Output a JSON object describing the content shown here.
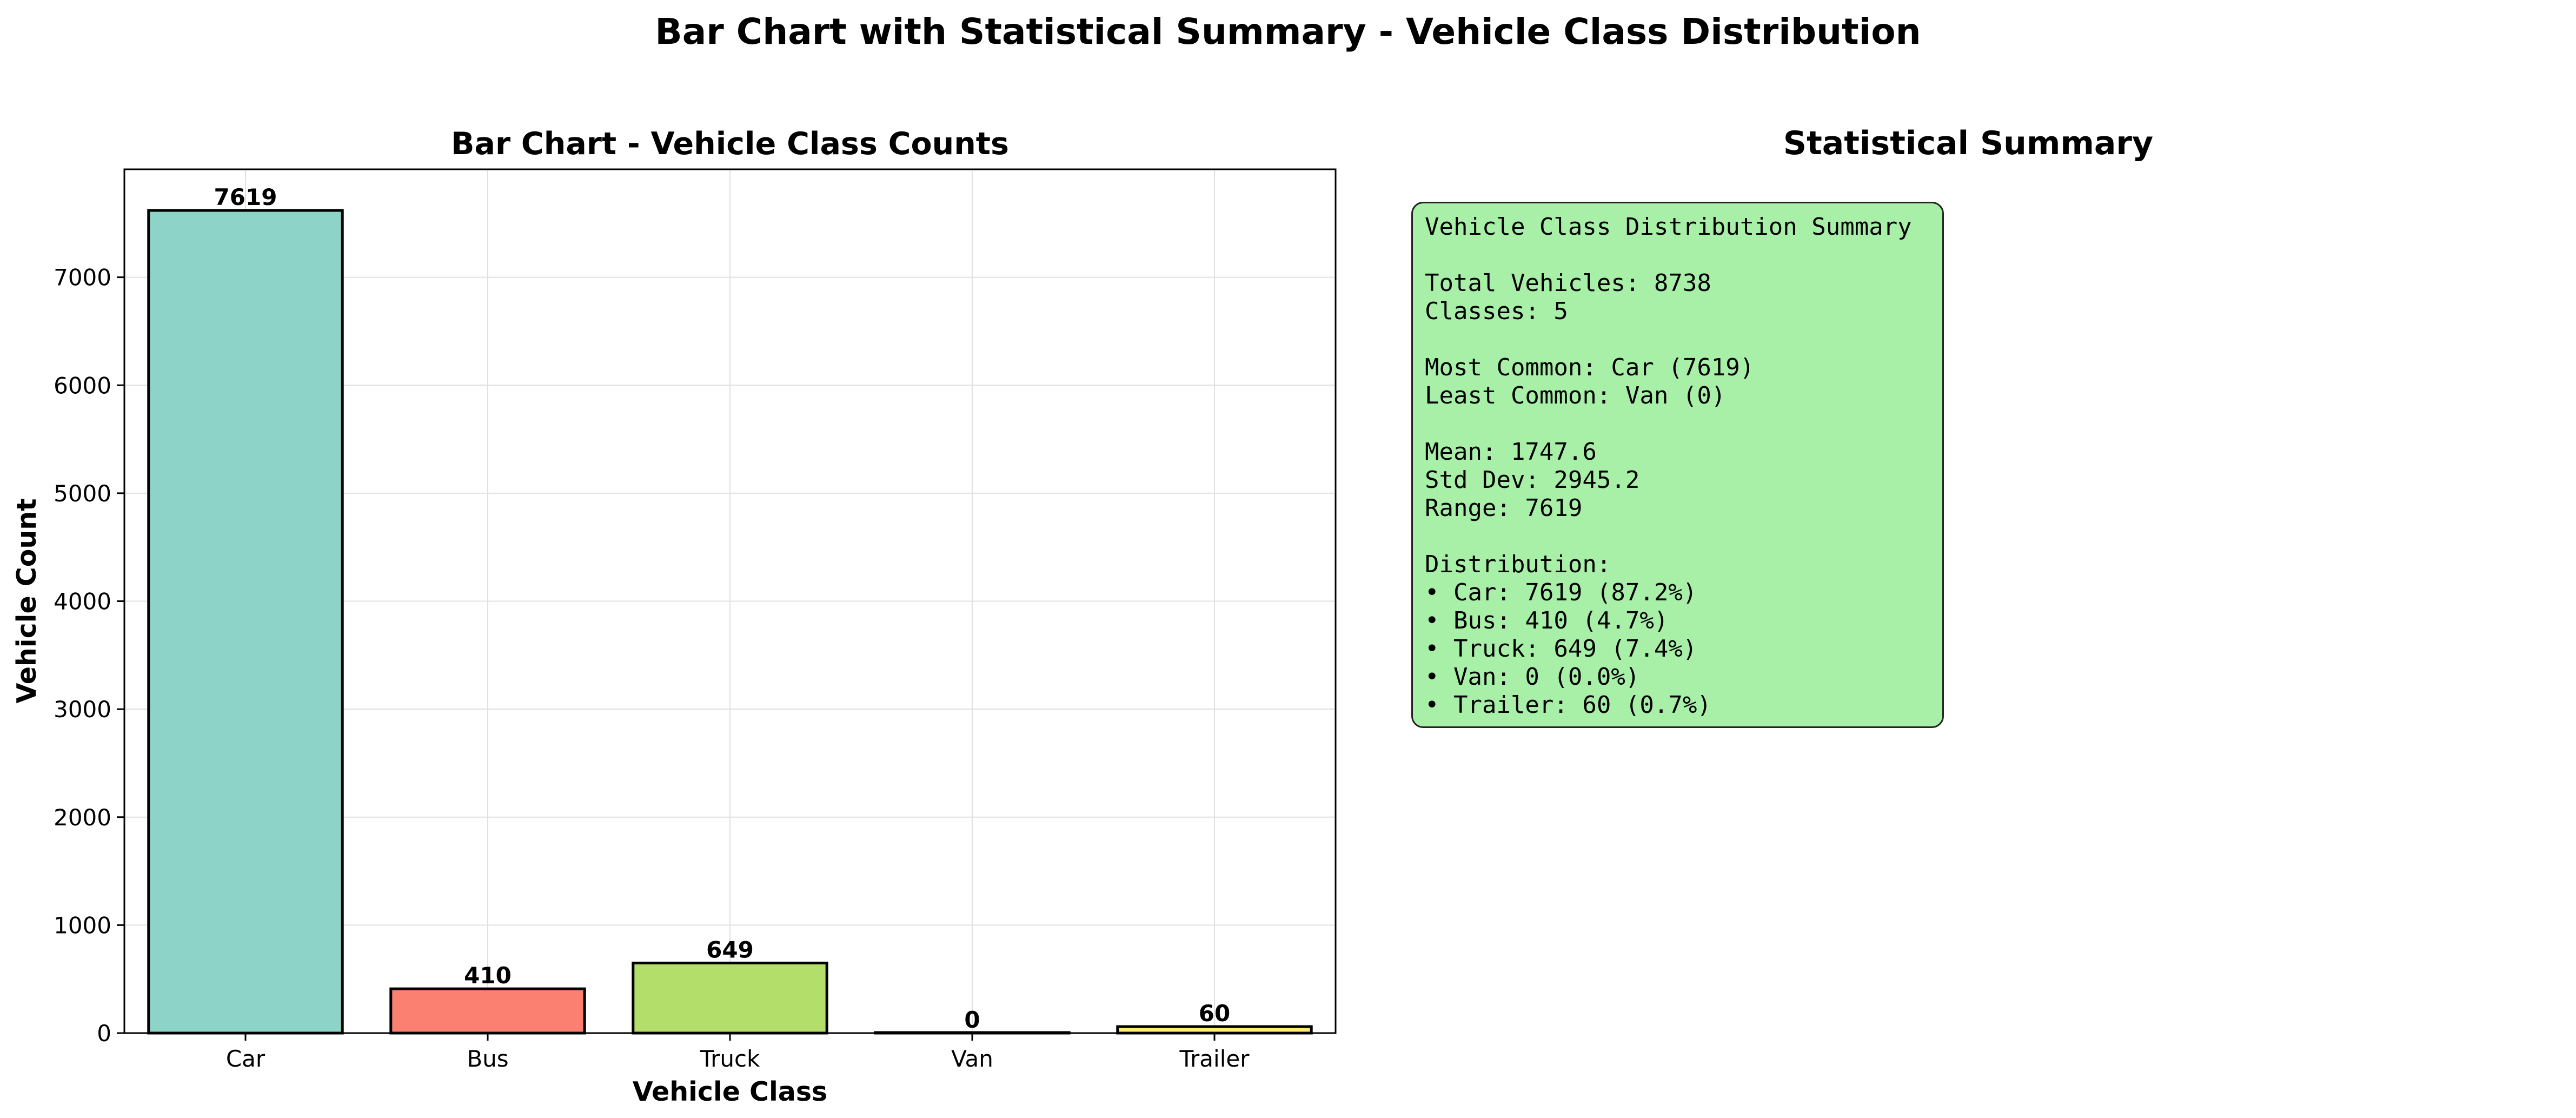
{
  "figure_title": "Bar Chart with Statistical Summary - Vehicle Class Distribution",
  "chart_data": {
    "type": "bar",
    "title": "Bar Chart - Vehicle Class Counts",
    "xlabel": "Vehicle Class",
    "ylabel": "Vehicle Count",
    "categories": [
      "Car",
      "Bus",
      "Truck",
      "Van",
      "Trailer"
    ],
    "values": [
      7619,
      410,
      649,
      0,
      60
    ],
    "value_labels": [
      "7619",
      "410",
      "649",
      "0",
      "60"
    ],
    "colors": [
      "#8dd3c7",
      "#fb8072",
      "#b3de69",
      "#bebada",
      "#ffed6f"
    ],
    "ylim": [
      0,
      8000
    ],
    "yticks": [
      0,
      1000,
      2000,
      3000,
      4000,
      5000,
      6000,
      7000
    ],
    "ytick_labels": [
      "0",
      "1000",
      "2000",
      "3000",
      "4000",
      "5000",
      "6000",
      "7000"
    ],
    "grid": true
  },
  "summary": {
    "title": "Statistical Summary",
    "heading": "Vehicle Class Distribution Summary",
    "total": "Total Vehicles: 8738",
    "classes": "Classes: 5",
    "most_common": "Most Common: Car (7619)",
    "least_common": "Least Common: Van (0)",
    "mean": "Mean: 1747.6",
    "std": "Std Dev: 2945.2",
    "range": "Range: 7619",
    "distribution_label": "Distribution:",
    "distribution": [
      "• Car: 7619 (87.2%)",
      "• Bus: 410 (4.7%)",
      "• Truck: 649 (7.4%)",
      "• Van: 0 (0.0%)",
      "• Trailer: 60 (0.7%)"
    ]
  }
}
